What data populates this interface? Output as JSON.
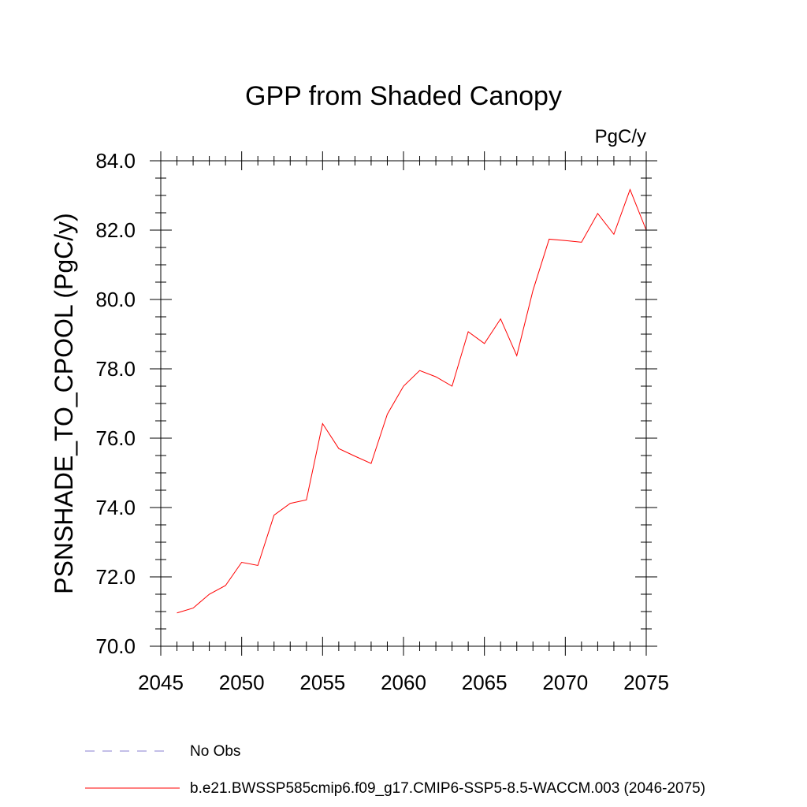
{
  "chart_data": {
    "type": "line",
    "title": "GPP from Shaded Canopy",
    "units_label": "PgC/y",
    "xlabel": "",
    "ylabel": "PSNSHADE_TO_CPOOL  (PgC/y)",
    "xlim": [
      2045,
      2075
    ],
    "ylim": [
      70,
      84
    ],
    "x_ticks": [
      2045,
      2050,
      2055,
      2060,
      2065,
      2070,
      2075
    ],
    "y_ticks": [
      70,
      72,
      74,
      76,
      78,
      80,
      82,
      84
    ],
    "x_tick_labels": [
      "2045",
      "2050",
      "2055",
      "2060",
      "2065",
      "2070",
      "2075"
    ],
    "y_tick_labels": [
      "70.0",
      "72.0",
      "74.0",
      "76.0",
      "78.0",
      "80.0",
      "82.0",
      "84.0"
    ],
    "series": [
      {
        "name": "b.e21.BWSSP585cmip6.f09_g17.CMIP6-SSP5-8.5-WACCM.003 (2046-2075)",
        "color": "#ff0000",
        "style": "solid",
        "x": [
          2046,
          2047,
          2048,
          2049,
          2050,
          2051,
          2052,
          2053,
          2054,
          2055,
          2056,
          2057,
          2058,
          2059,
          2060,
          2061,
          2062,
          2063,
          2064,
          2065,
          2066,
          2067,
          2068,
          2069,
          2070,
          2071,
          2072,
          2073,
          2074,
          2075
        ],
        "y": [
          70.96,
          71.1,
          71.5,
          71.75,
          72.42,
          72.33,
          73.78,
          74.12,
          74.22,
          76.42,
          75.7,
          75.48,
          75.27,
          76.69,
          77.5,
          77.95,
          77.77,
          77.5,
          79.07,
          78.73,
          79.44,
          78.38,
          80.26,
          81.74,
          81.7,
          81.65,
          82.48,
          81.88,
          83.17,
          82.0
        ]
      }
    ],
    "legend": [
      {
        "label": "No Obs",
        "color": "#8a7fd0",
        "style": "dashed"
      },
      {
        "label": "b.e21.BWSSP585cmip6.f09_g17.CMIP6-SSP5-8.5-WACCM.003 (2046-2075)",
        "color": "#ff0000",
        "style": "solid"
      }
    ],
    "legend_position": "bottom",
    "grid": false
  }
}
